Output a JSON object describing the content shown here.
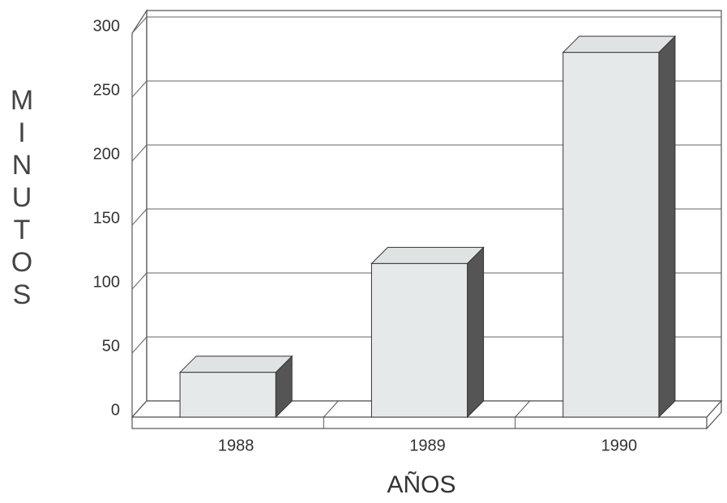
{
  "chart_data": {
    "type": "bar3d",
    "x_label": "AÑOS",
    "y_label": "MINUTOS",
    "categories": [
      "1988",
      "1989",
      "1990"
    ],
    "values": [
      35,
      120,
      285
    ],
    "color": "#e6e9ea",
    "ylim": [
      0,
      300
    ],
    "yticks": [
      0,
      50,
      100,
      150,
      200,
      250,
      300
    ],
    "grid": true
  }
}
